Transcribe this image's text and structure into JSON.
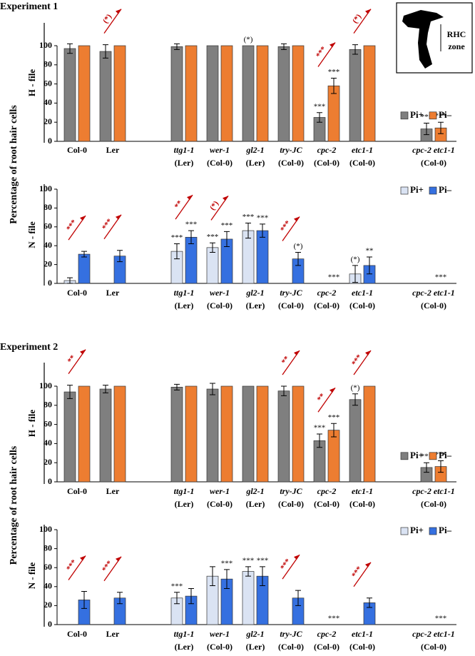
{
  "inset_label": [
    "RHC",
    "zone"
  ],
  "chart_data": [
    {
      "type": "bar",
      "title": "Experiment 1",
      "ylabel": "Percentage of root hair cells",
      "panel_label": "H - file",
      "categories": [
        "Col-0",
        "Ler",
        null,
        [
          "ttg1-1",
          "(Ler)"
        ],
        [
          "wer-1",
          "(Col-0)"
        ],
        [
          "gl2-1",
          "(Ler)"
        ],
        [
          "try-JC",
          "(Col-0)"
        ],
        [
          "cpc-2",
          "(Col-0)"
        ],
        [
          "etc1-1",
          "(Col-0)"
        ],
        null,
        [
          "cpc-2 etc1-1",
          "(Col-0)"
        ]
      ],
      "ylim": [
        0,
        100
      ],
      "yticks": [
        0,
        20,
        40,
        60,
        80,
        100
      ],
      "legend": "center right",
      "series": [
        {
          "name": "Pi+",
          "color": "#7f7f7f",
          "values": [
            97,
            94,
            null,
            99,
            100,
            100,
            99,
            25,
            96,
            null,
            13
          ],
          "errors": [
            5,
            7,
            null,
            3,
            null,
            null,
            3,
            5,
            5,
            null,
            6
          ],
          "annotations": [
            null,
            null,
            null,
            null,
            null,
            "(*)",
            null,
            "***",
            null,
            null,
            "***"
          ]
        },
        {
          "name": "Pi–",
          "color": "#ed7d31",
          "values": [
            100,
            100,
            null,
            100,
            100,
            100,
            100,
            58,
            100,
            null,
            14
          ],
          "errors": [
            null,
            null,
            null,
            null,
            null,
            null,
            null,
            8,
            null,
            null,
            6
          ],
          "annotations": [
            null,
            null,
            null,
            null,
            null,
            null,
            null,
            "***",
            null,
            null,
            "***"
          ]
        }
      ],
      "arrows": [
        null,
        "(*)",
        null,
        null,
        null,
        null,
        null,
        "***",
        "(*)",
        null,
        null
      ]
    },
    {
      "type": "bar",
      "panel_label": "N - file",
      "categories": [
        "Col-0",
        "Ler",
        null,
        [
          "ttg1-1",
          "(Ler)"
        ],
        [
          "wer-1",
          "(Col-0)"
        ],
        [
          "gl2-1",
          "(Ler)"
        ],
        [
          "try-JC",
          "(Col-0)"
        ],
        [
          "cpc-2",
          "(Col-0)"
        ],
        [
          "etc1-1",
          "(Col-0)"
        ],
        null,
        [
          "cpc-2 etc1-1",
          "(Col-0)"
        ]
      ],
      "ylim": [
        0,
        100
      ],
      "yticks": [
        0,
        20,
        40,
        60,
        80,
        100
      ],
      "legend": "upper right",
      "series": [
        {
          "name": "Pi+",
          "color": "#dae3f3",
          "values": [
            3,
            0,
            null,
            34,
            38,
            56,
            0,
            0,
            10,
            null,
            0
          ],
          "errors": [
            3,
            null,
            null,
            8,
            5,
            8,
            null,
            null,
            9,
            null,
            null
          ],
          "annotations": [
            null,
            null,
            null,
            "***",
            "***",
            "***",
            null,
            null,
            "(*)",
            null,
            null
          ]
        },
        {
          "name": "Pi–",
          "color": "#3570e0",
          "values": [
            31,
            29,
            null,
            49,
            47,
            56,
            26,
            0,
            19,
            null,
            0
          ],
          "errors": [
            3,
            6,
            null,
            7,
            8,
            7,
            7,
            null,
            9,
            null,
            null
          ],
          "annotations": [
            null,
            null,
            null,
            "***",
            "***",
            "***",
            "(*)",
            "***",
            "**",
            null,
            "***"
          ]
        }
      ],
      "arrows": [
        "***",
        "***",
        null,
        "**",
        "(*)",
        null,
        "***",
        null,
        null,
        null,
        null
      ]
    },
    {
      "type": "bar",
      "title": "Experiment 2",
      "ylabel": "Percentage of root hair cells",
      "panel_label": "H - file",
      "categories": [
        "Col-0",
        "Ler",
        null,
        [
          "ttg1-1",
          "(Ler)"
        ],
        [
          "wer-1",
          "(Col-0)"
        ],
        [
          "gl2-1",
          "(Ler)"
        ],
        [
          "try-JC",
          "(Col-0)"
        ],
        [
          "cpc-2",
          "(Col-0)"
        ],
        [
          "etc1-1",
          "(Col-0)"
        ],
        null,
        [
          "cpc-2 etc1-1",
          "(Col-0)"
        ]
      ],
      "ylim": [
        0,
        100
      ],
      "yticks": [
        0,
        20,
        40,
        60,
        80,
        100
      ],
      "legend": "center right",
      "series": [
        {
          "name": "Pi+",
          "color": "#7f7f7f",
          "values": [
            94,
            97,
            null,
            99,
            97,
            100,
            95,
            43,
            86,
            null,
            15
          ],
          "errors": [
            7,
            4,
            null,
            3,
            6,
            null,
            5,
            7,
            6,
            null,
            5
          ],
          "annotations": [
            null,
            null,
            null,
            null,
            null,
            null,
            null,
            "***",
            "(*)",
            null,
            "***"
          ]
        },
        {
          "name": "Pi–",
          "color": "#ed7d31",
          "values": [
            100,
            100,
            null,
            100,
            100,
            100,
            100,
            54,
            100,
            null,
            16
          ],
          "errors": [
            null,
            null,
            null,
            null,
            null,
            null,
            null,
            7,
            null,
            null,
            6
          ],
          "annotations": [
            null,
            null,
            null,
            null,
            null,
            null,
            null,
            "***",
            null,
            null,
            "***"
          ]
        }
      ],
      "arrows": [
        "**",
        null,
        null,
        null,
        null,
        null,
        "**",
        "**",
        "***",
        null,
        null
      ]
    },
    {
      "type": "bar",
      "panel_label": "N - file",
      "categories": [
        "Col-0",
        "Ler",
        null,
        [
          "ttg1-1",
          "(Ler)"
        ],
        [
          "wer-1",
          "(Col-0)"
        ],
        [
          "gl2-1",
          "(Ler)"
        ],
        [
          "try-JC",
          "(Col-0)"
        ],
        [
          "cpc-2",
          "(Col-0)"
        ],
        [
          "etc1-1",
          "(Col-0)"
        ],
        null,
        [
          "cpc-2 etc1-1",
          "(Col-0)"
        ]
      ],
      "ylim": [
        0,
        100
      ],
      "yticks": [
        0,
        20,
        40,
        60,
        80,
        100
      ],
      "legend": "upper right",
      "series": [
        {
          "name": "Pi+",
          "color": "#dae3f3",
          "values": [
            0,
            0,
            null,
            28,
            51,
            56,
            0,
            0,
            0,
            null,
            0
          ],
          "errors": [
            null,
            null,
            null,
            6,
            10,
            5,
            null,
            null,
            null,
            null,
            null
          ],
          "annotations": [
            null,
            null,
            null,
            "***",
            null,
            "***",
            null,
            null,
            null,
            null,
            null
          ]
        },
        {
          "name": "Pi–",
          "color": "#3570e0",
          "values": [
            26,
            28,
            null,
            30,
            48,
            51,
            28,
            0,
            23,
            null,
            0
          ],
          "errors": [
            9,
            6,
            null,
            8,
            10,
            10,
            8,
            null,
            5,
            null,
            null
          ],
          "annotations": [
            null,
            null,
            null,
            null,
            "***",
            "***",
            null,
            "***",
            null,
            null,
            "***"
          ]
        }
      ],
      "arrows": [
        "***",
        "***",
        null,
        null,
        null,
        null,
        "***",
        null,
        "***",
        null,
        null
      ]
    }
  ]
}
